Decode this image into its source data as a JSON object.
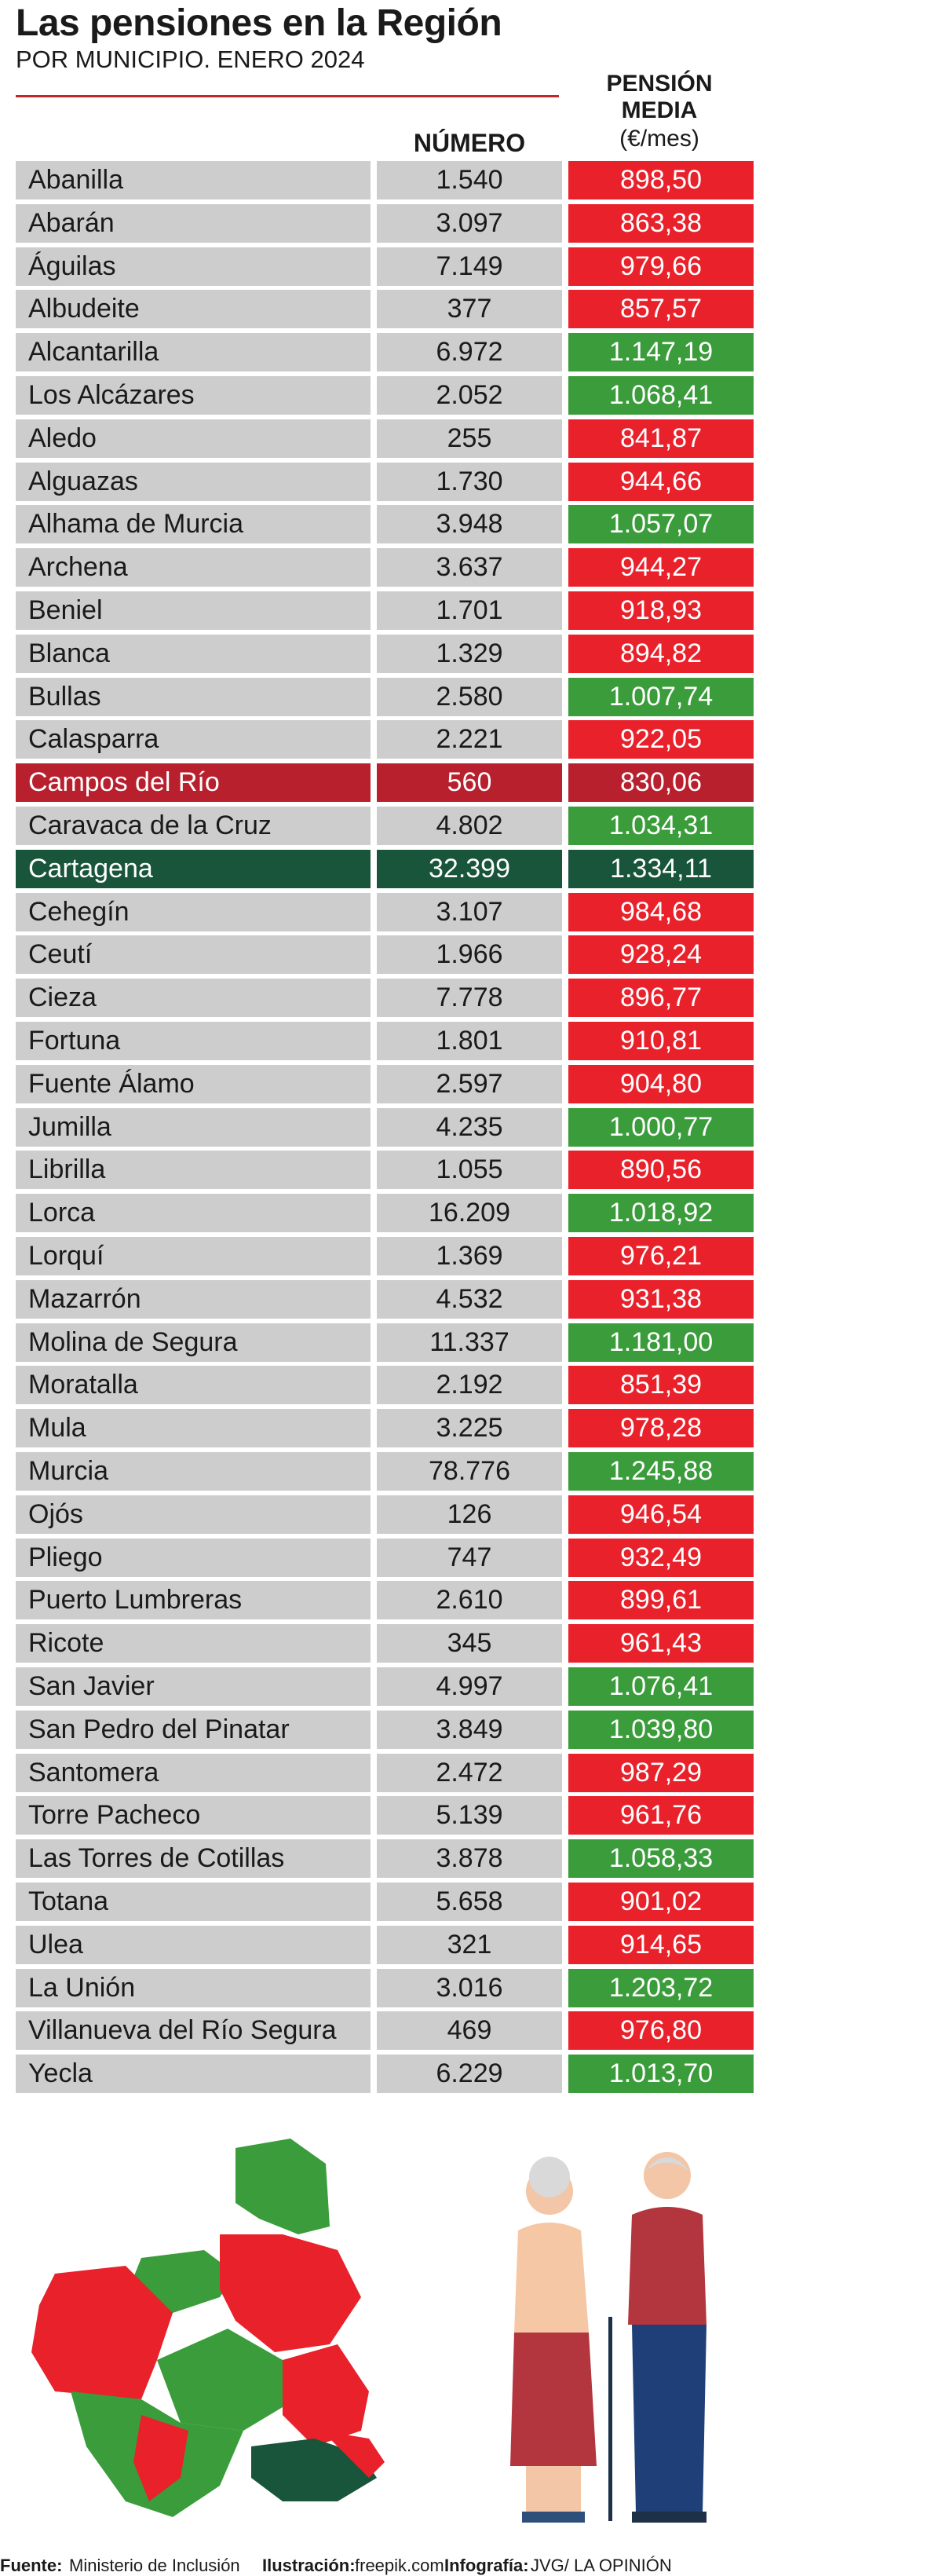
{
  "title": "Las pensiones en la Región",
  "subtitle": "POR MUNICIPIO. ENERO 2024",
  "columns": {
    "numero": "NÚMERO",
    "pension_line1": "PENSIÓN",
    "pension_line2": "MEDIA",
    "pension_unit": "(€/mes)"
  },
  "colors": {
    "below_1000": "#e8212b",
    "above_1000": "#3a9c3a",
    "minimum": "#b8202e",
    "maximum": "#18553a",
    "neutral": "#cdcdcd"
  },
  "chart_data": {
    "type": "table",
    "highlight_min": "Campos del Río",
    "highlight_max": "Cartagena",
    "rows": [
      {
        "municipio": "Abanilla",
        "numero": "1.540",
        "pension": "898,50",
        "value": 898.5
      },
      {
        "municipio": "Abarán",
        "numero": "3.097",
        "pension": "863,38",
        "value": 863.38
      },
      {
        "municipio": "Águilas",
        "numero": "7.149",
        "pension": "979,66",
        "value": 979.66
      },
      {
        "municipio": "Albudeite",
        "numero": "377",
        "pension": "857,57",
        "value": 857.57
      },
      {
        "municipio": "Alcantarilla",
        "numero": "6.972",
        "pension": "1.147,19",
        "value": 1147.19
      },
      {
        "municipio": "Los Alcázares",
        "numero": "2.052",
        "pension": "1.068,41",
        "value": 1068.41
      },
      {
        "municipio": "Aledo",
        "numero": "255",
        "pension": "841,87",
        "value": 841.87
      },
      {
        "municipio": "Alguazas",
        "numero": "1.730",
        "pension": "944,66",
        "value": 944.66
      },
      {
        "municipio": "Alhama de Murcia",
        "numero": "3.948",
        "pension": "1.057,07",
        "value": 1057.07
      },
      {
        "municipio": "Archena",
        "numero": "3.637",
        "pension": "944,27",
        "value": 944.27
      },
      {
        "municipio": "Beniel",
        "numero": "1.701",
        "pension": "918,93",
        "value": 918.93
      },
      {
        "municipio": "Blanca",
        "numero": "1.329",
        "pension": "894,82",
        "value": 894.82
      },
      {
        "municipio": "Bullas",
        "numero": "2.580",
        "pension": "1.007,74",
        "value": 1007.74
      },
      {
        "municipio": "Calasparra",
        "numero": "2.221",
        "pension": "922,05",
        "value": 922.05
      },
      {
        "municipio": "Campos del Río",
        "numero": "560",
        "pension": "830,06",
        "value": 830.06
      },
      {
        "municipio": "Caravaca de la Cruz",
        "numero": "4.802",
        "pension": "1.034,31",
        "value": 1034.31
      },
      {
        "municipio": "Cartagena",
        "numero": "32.399",
        "pension": "1.334,11",
        "value": 1334.11
      },
      {
        "municipio": "Cehegín",
        "numero": "3.107",
        "pension": "984,68",
        "value": 984.68
      },
      {
        "municipio": "Ceutí",
        "numero": "1.966",
        "pension": "928,24",
        "value": 928.24
      },
      {
        "municipio": "Cieza",
        "numero": "7.778",
        "pension": "896,77",
        "value": 896.77
      },
      {
        "municipio": "Fortuna",
        "numero": "1.801",
        "pension": "910,81",
        "value": 910.81
      },
      {
        "municipio": "Fuente Álamo",
        "numero": "2.597",
        "pension": "904,80",
        "value": 904.8
      },
      {
        "municipio": "Jumilla",
        "numero": "4.235",
        "pension": "1.000,77",
        "value": 1000.77
      },
      {
        "municipio": "Librilla",
        "numero": "1.055",
        "pension": "890,56",
        "value": 890.56
      },
      {
        "municipio": "Lorca",
        "numero": "16.209",
        "pension": "1.018,92",
        "value": 1018.92
      },
      {
        "municipio": "Lorquí",
        "numero": "1.369",
        "pension": "976,21",
        "value": 976.21
      },
      {
        "municipio": "Mazarrón",
        "numero": "4.532",
        "pension": "931,38",
        "value": 931.38
      },
      {
        "municipio": "Molina de Segura",
        "numero": "11.337",
        "pension": "1.181,00",
        "value": 1181.0
      },
      {
        "municipio": "Moratalla",
        "numero": "2.192",
        "pension": "851,39",
        "value": 851.39
      },
      {
        "municipio": "Mula",
        "numero": "3.225",
        "pension": "978,28",
        "value": 978.28
      },
      {
        "municipio": "Murcia",
        "numero": "78.776",
        "pension": "1.245,88",
        "value": 1245.88
      },
      {
        "municipio": "Ojós",
        "numero": "126",
        "pension": "946,54",
        "value": 946.54
      },
      {
        "municipio": "Pliego",
        "numero": "747",
        "pension": "932,49",
        "value": 932.49
      },
      {
        "municipio": "Puerto Lumbreras",
        "numero": "2.610",
        "pension": "899,61",
        "value": 899.61
      },
      {
        "municipio": "Ricote",
        "numero": "345",
        "pension": "961,43",
        "value": 961.43
      },
      {
        "municipio": "San Javier",
        "numero": "4.997",
        "pension": "1.076,41",
        "value": 1076.41
      },
      {
        "municipio": "San Pedro del Pinatar",
        "numero": "3.849",
        "pension": "1.039,80",
        "value": 1039.8
      },
      {
        "municipio": "Santomera",
        "numero": "2.472",
        "pension": "987,29",
        "value": 987.29
      },
      {
        "municipio": "Torre Pacheco",
        "numero": "5.139",
        "pension": "961,76",
        "value": 961.76
      },
      {
        "municipio": "Las Torres de Cotillas",
        "numero": "3.878",
        "pension": "1.058,33",
        "value": 1058.33
      },
      {
        "municipio": "Totana",
        "numero": "5.658",
        "pension": "901,02",
        "value": 901.02
      },
      {
        "municipio": "Ulea",
        "numero": "321",
        "pension": "914,65",
        "value": 914.65
      },
      {
        "municipio": "La Unión",
        "numero": "3.016",
        "pension": "1.203,72",
        "value": 1203.72
      },
      {
        "municipio": "Villanueva del Río Segura",
        "numero": "469",
        "pension": "976,80",
        "value": 976.8
      },
      {
        "municipio": "Yecla",
        "numero": "6.229",
        "pension": "1.013,70",
        "value": 1013.7
      }
    ]
  },
  "footer": {
    "fuente_label": "Fuente:",
    "fuente": "Ministerio de Inclusión",
    "ilustracion_label": "Ilustración:",
    "ilustracion": "freepik.com",
    "infografia_label": "Infografía:",
    "infografia": "JVG/ LA OPINIÓN"
  }
}
